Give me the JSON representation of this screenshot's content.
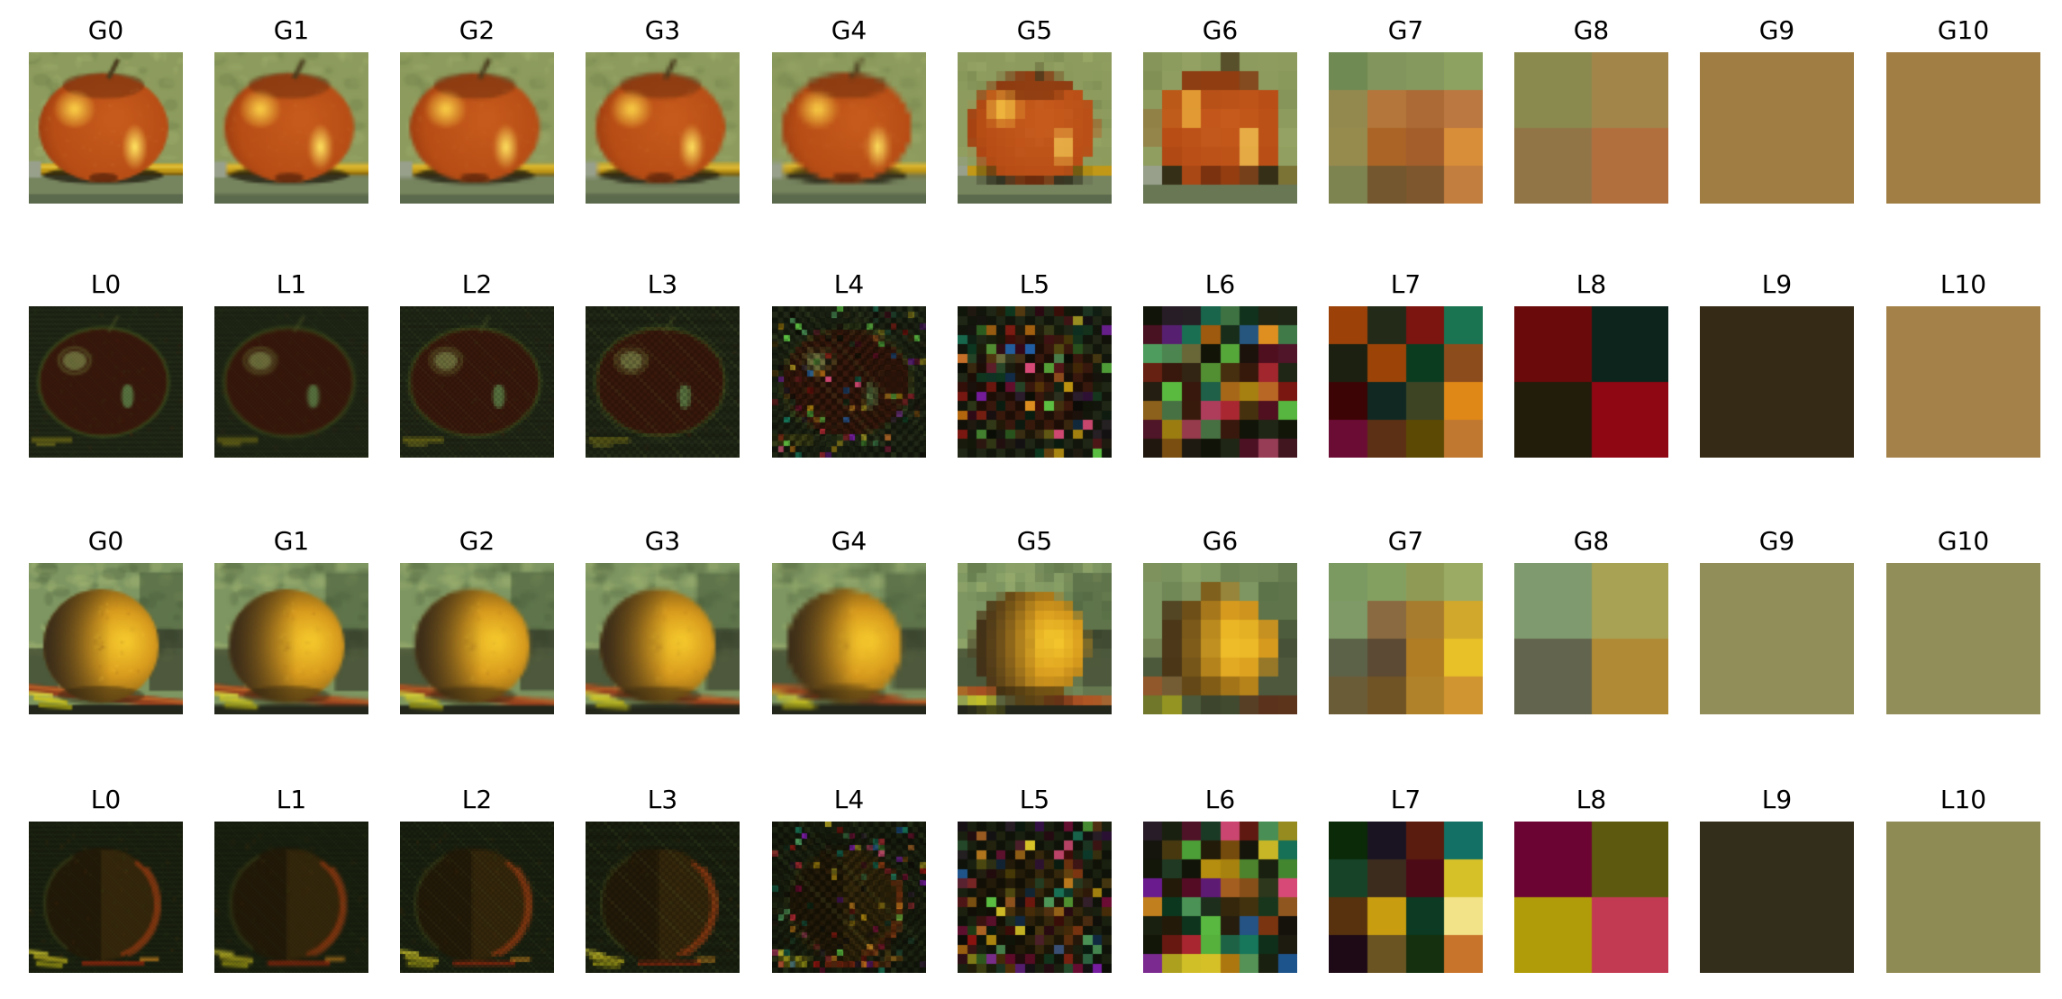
{
  "figure": {
    "columns": 11,
    "rows": [
      {
        "subject": "apple",
        "pyramid": "gaussian",
        "labels": [
          "G0",
          "G1",
          "G2",
          "G3",
          "G4",
          "G5",
          "G6",
          "G7",
          "G8",
          "G9",
          "G10"
        ]
      },
      {
        "subject": "apple",
        "pyramid": "laplacian",
        "labels": [
          "L0",
          "L1",
          "L2",
          "L3",
          "L4",
          "L5",
          "L6",
          "L7",
          "L8",
          "L9",
          "L10"
        ]
      },
      {
        "subject": "orange",
        "pyramid": "gaussian",
        "labels": [
          "G0",
          "G1",
          "G2",
          "G3",
          "G4",
          "G5",
          "G6",
          "G7",
          "G8",
          "G9",
          "G10"
        ]
      },
      {
        "subject": "orange",
        "pyramid": "laplacian",
        "labels": [
          "L0",
          "L1",
          "L2",
          "L3",
          "L4",
          "L5",
          "L6",
          "L7",
          "L8",
          "L9",
          "L10"
        ]
      }
    ]
  },
  "palette": {
    "apple": {
      "background_green": "#8d9c5e",
      "body": "#b84e16",
      "body_dark_top": "#6e2e0e",
      "highlight_left": "#f5c84a",
      "highlight_right": "#ffe15f",
      "stem": "#4a3c1e",
      "pencil": "#c99f18",
      "table": "#77855f",
      "lap_background": "#232a18",
      "lap_silhouette": "#3a180c",
      "lap_spot_green": "#6d6d3c",
      "lap_dash_cyan": "#58713f",
      "g7": [
        "#6f8a52",
        "#81955c",
        "#85985e",
        "#8da260",
        "#93894f",
        "#b4763a",
        "#ab6a36",
        "#bb7840",
        "#978a4d",
        "#ab6426",
        "#a35e2c",
        "#d88e38",
        "#7e8450",
        "#74572e",
        "#7e572e",
        "#c27e3e"
      ],
      "g8": [
        "#8b8a4e",
        "#a28549",
        "#927547",
        "#b26f3e"
      ],
      "g9": "#a07d42",
      "g10": "#a17e44",
      "l7": [
        "#9c4208",
        "#232a18",
        "#7c1410",
        "#1a7452",
        "#1c2010",
        "#9c4408",
        "#0c3c20",
        "#8c4c1c",
        "#3c0404",
        "#112822",
        "#3c4424",
        "#df8818",
        "#6b0c34",
        "#5c3014",
        "#5c4a04",
        "#c07830"
      ],
      "l8": [
        "#6b0a0a",
        "#0d241c",
        "#221c0b",
        "#8f0713"
      ],
      "l9": "#352a16",
      "l10": "#a48148"
    },
    "orange": {
      "background_green": "#7e9662",
      "body_bright": "#f4c62c",
      "body_mid": "#d99c1e",
      "body_shadow": "#34281a",
      "stick": "#93401e",
      "leaf": "#c6c026",
      "lap_background": "#1d2412",
      "lap_edge_arc": "#8a3812",
      "g7": [
        "#7b9a62",
        "#84a061",
        "#8f9b55",
        "#9cab64",
        "#7f9a66",
        "#8a6a40",
        "#a87c2e",
        "#d2a82c",
        "#5c6248",
        "#5c4a34",
        "#b07c24",
        "#e8c028",
        "#6b5c38",
        "#705426",
        "#b0832a",
        "#d09430"
      ],
      "g8": [
        "#7f9a6e",
        "#a8a254",
        "#63644d",
        "#b08a35"
      ],
      "g9": "#928e59",
      "g10": "#928e59",
      "l7": [
        "#0a2a08",
        "#1a1422",
        "#5a1c0e",
        "#127064",
        "#174428",
        "#3c2c1e",
        "#4c0a16",
        "#d6c228",
        "#58320e",
        "#c89e10",
        "#0c3a22",
        "#f2e288",
        "#1e0a16",
        "#6a5422",
        "#15300e",
        "#c8742a"
      ],
      "l8": [
        "#6b0432",
        "#5d5a10",
        "#b09c08",
        "#c23a52"
      ],
      "l9": "#332e1b",
      "l10": "#8f8b55"
    },
    "lap_mosaic": [
      "#8c1410",
      "#16785c",
      "#c89c10",
      "#b4680f",
      "#0c3820",
      "#6b0c34",
      "#2a1c2c",
      "#c87028",
      "#5cc243",
      "#b42834",
      "#1c3c28",
      "#4c3a10",
      "#101408",
      "#d8c428",
      "#7a1ca8",
      "#d84a78",
      "#2060a8",
      "#e09020",
      "#50a060",
      "#5c0a28",
      "#14100c",
      "#201810"
    ]
  }
}
